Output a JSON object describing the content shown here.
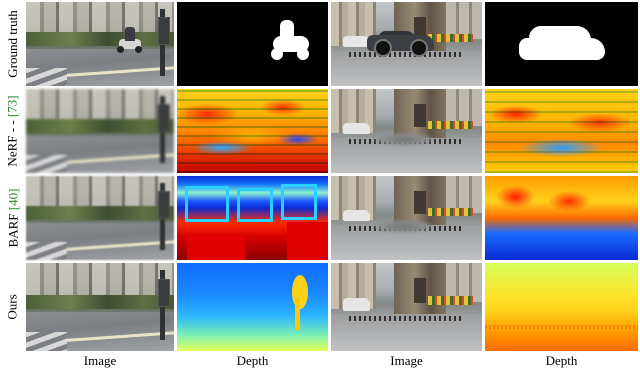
{
  "rows": [
    {
      "id": "gt",
      "label": "Ground truth",
      "cite": ""
    },
    {
      "id": "nerf",
      "label": "NeRF - - ",
      "cite": "[73]"
    },
    {
      "id": "barf",
      "label": "BARF ",
      "cite": "[40]"
    },
    {
      "id": "ours",
      "label": "Ours",
      "cite": ""
    }
  ],
  "columns": [
    "Image",
    "Depth",
    "Image",
    "Depth"
  ],
  "colors": {
    "citation": "#2a8a2a",
    "background": "#ffffff"
  }
}
